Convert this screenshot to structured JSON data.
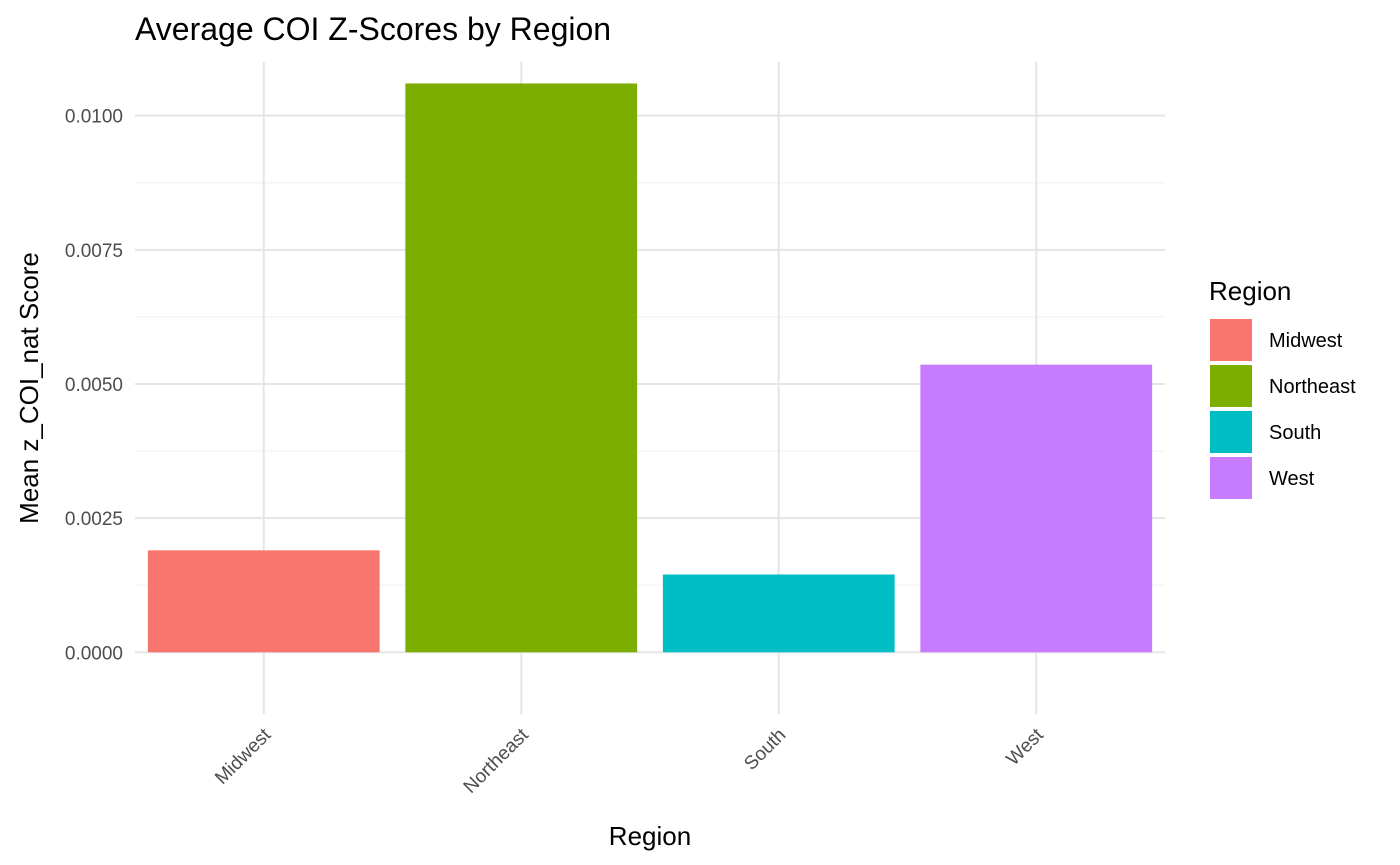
{
  "chart_data": {
    "type": "bar",
    "title": "Average COI Z-Scores by Region",
    "xlabel": "Region",
    "ylabel": "Mean z_COI_nat Score",
    "categories": [
      "Midwest",
      "Northeast",
      "South",
      "West"
    ],
    "values": [
      0.0019,
      0.0106,
      0.00145,
      0.00536
    ],
    "colors": [
      "#F8766D",
      "#7CAE00",
      "#00BFC4",
      "#C77CFF"
    ],
    "ylim": [
      -0.00115,
      0.011
    ],
    "yticks": [
      0.0,
      0.0025,
      0.005,
      0.0075,
      0.01
    ],
    "ytick_labels": [
      "0.0000",
      "0.0025",
      "0.0050",
      "0.0075",
      "0.0100"
    ],
    "grid": true,
    "legend": {
      "title": "Region",
      "position": "right",
      "entries": [
        "Midwest",
        "Northeast",
        "South",
        "West"
      ]
    }
  }
}
